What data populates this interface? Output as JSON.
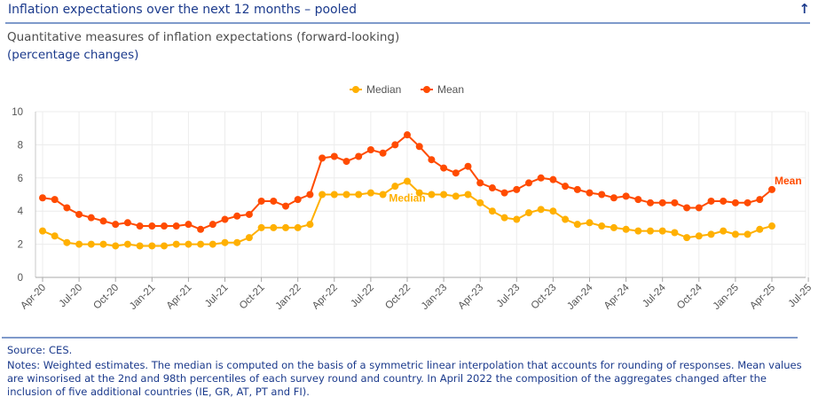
{
  "header": {
    "title": "Inflation expectations over the next 12 months – pooled",
    "back_to_top_icon": "arrow-up-icon",
    "back_to_top_glyph": "↑"
  },
  "subtitle": "Quantitative measures of inflation expectations (forward-looking)",
  "units": "(percentage changes)",
  "footer": {
    "source": "Source: CES.",
    "notes": "Notes: Weighted estimates. The median is computed on the basis of a symmetric linear interpolation that accounts for rounding of responses. Mean values are winsorised at the 2nd and 98th percentiles of each survey round and country. In April 2022 the composition of the aggregates changed after the inclusion of five additional countries (IE, GR, AT, PT and FI)."
  },
  "colors": {
    "median": "#ffb000",
    "mean": "#ff4b00",
    "header_text": "#1b3a8c",
    "rule": "#7f9acb"
  },
  "chart_data": {
    "type": "line",
    "title": "Quantitative measures of inflation expectations (forward-looking)",
    "subtitle": "(percentage changes)",
    "xlabel": "",
    "ylabel": "",
    "ylim": [
      0,
      10
    ],
    "yticks": [
      0,
      2,
      4,
      6,
      8,
      10
    ],
    "grid": true,
    "legend_position": "top-center",
    "x_start": "Apr-20",
    "frequency": "monthly",
    "xtick_labels": [
      "Apr-20",
      "Jul-20",
      "Oct-20",
      "Jan-21",
      "Apr-21",
      "Jul-21",
      "Oct-21",
      "Jan-22",
      "Apr-22",
      "Jul-22",
      "Oct-22",
      "Jan-23",
      "Apr-23",
      "Jul-23",
      "Oct-23",
      "Jan-24",
      "Apr-24",
      "Jul-24",
      "Oct-24",
      "Jan-25",
      "Apr-25",
      "Jul-25"
    ],
    "series": [
      {
        "name": "Median",
        "color": "#ffb000",
        "end_label": "Median",
        "values": [
          2.8,
          2.5,
          2.1,
          2.0,
          2.0,
          2.0,
          1.9,
          2.0,
          1.9,
          1.9,
          1.9,
          2.0,
          2.0,
          2.0,
          2.0,
          2.1,
          2.1,
          2.4,
          3.0,
          3.0,
          3.0,
          3.0,
          3.2,
          5.0,
          5.0,
          5.0,
          5.0,
          5.1,
          5.0,
          5.5,
          5.8,
          5.1,
          5.0,
          5.0,
          4.9,
          5.0,
          4.5,
          4.0,
          3.6,
          3.5,
          3.9,
          4.1,
          4.0,
          3.5,
          3.2,
          3.3,
          3.1,
          3.0,
          2.9,
          2.8,
          2.8,
          2.8,
          2.7,
          2.4,
          2.5,
          2.6,
          2.8,
          2.6,
          2.6,
          2.9,
          3.1
        ]
      },
      {
        "name": "Mean",
        "color": "#ff4b00",
        "end_label": "Mean",
        "values": [
          4.8,
          4.7,
          4.2,
          3.8,
          3.6,
          3.4,
          3.2,
          3.3,
          3.1,
          3.1,
          3.1,
          3.1,
          3.2,
          2.9,
          3.2,
          3.5,
          3.7,
          3.8,
          4.6,
          4.6,
          4.3,
          4.7,
          5.0,
          7.2,
          7.3,
          7.0,
          7.3,
          7.7,
          7.5,
          8.0,
          8.6,
          7.9,
          7.1,
          6.6,
          6.3,
          6.7,
          5.7,
          5.4,
          5.1,
          5.3,
          5.7,
          6.0,
          5.9,
          5.5,
          5.3,
          5.1,
          5.0,
          4.8,
          4.9,
          4.7,
          4.5,
          4.5,
          4.5,
          4.2,
          4.2,
          4.6,
          4.6,
          4.5,
          4.5,
          4.7,
          5.3
        ]
      }
    ],
    "annotations": [
      {
        "text": "Median",
        "series": "Median",
        "at": "Oct-22"
      },
      {
        "text": "Mean",
        "series": "Mean",
        "at": "Apr-25"
      }
    ]
  }
}
